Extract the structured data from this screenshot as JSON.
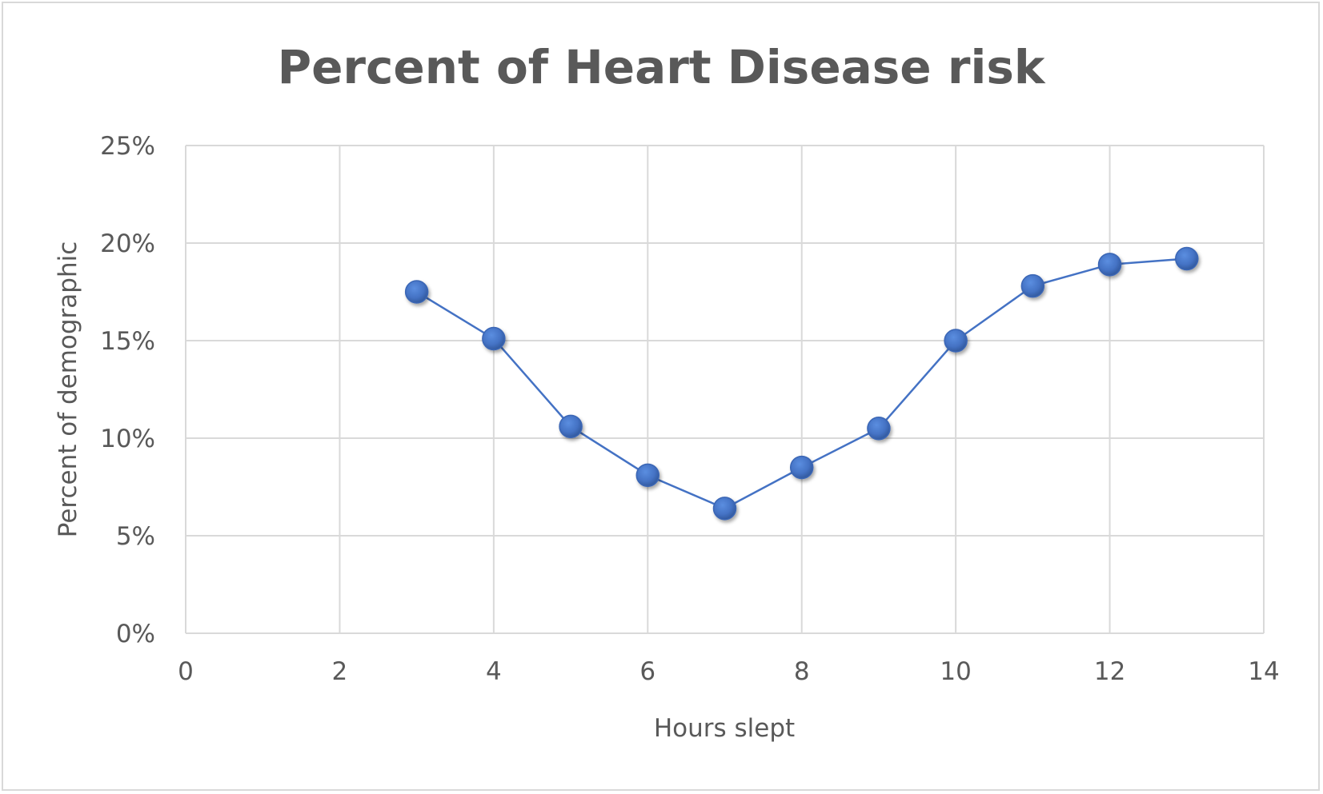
{
  "chart_data": {
    "type": "scatter",
    "title": "Percent of Heart Disease risk",
    "xlabel": "Hours slept",
    "ylabel": "Percent of demographic",
    "xlim": [
      0,
      14
    ],
    "ylim": [
      0,
      0.25
    ],
    "x_ticks": [
      "0",
      "2",
      "4",
      "6",
      "8",
      "10",
      "12",
      "14"
    ],
    "y_ticks": [
      "0%",
      "5%",
      "10%",
      "15%",
      "20%",
      "25%"
    ],
    "grid": true,
    "legend": "none",
    "series": [
      {
        "color": "#4472c4",
        "lines": true,
        "markers": true,
        "points": [
          {
            "x": 3,
            "y": 0.175
          },
          {
            "x": 4,
            "y": 0.151
          },
          {
            "x": 5,
            "y": 0.106
          },
          {
            "x": 6,
            "y": 0.081
          },
          {
            "x": 7,
            "y": 0.064
          },
          {
            "x": 8,
            "y": 0.085
          },
          {
            "x": 9,
            "y": 0.105
          },
          {
            "x": 10,
            "y": 0.15
          },
          {
            "x": 11,
            "y": 0.178
          },
          {
            "x": 12,
            "y": 0.189
          },
          {
            "x": 13,
            "y": 0.192
          }
        ]
      }
    ]
  }
}
